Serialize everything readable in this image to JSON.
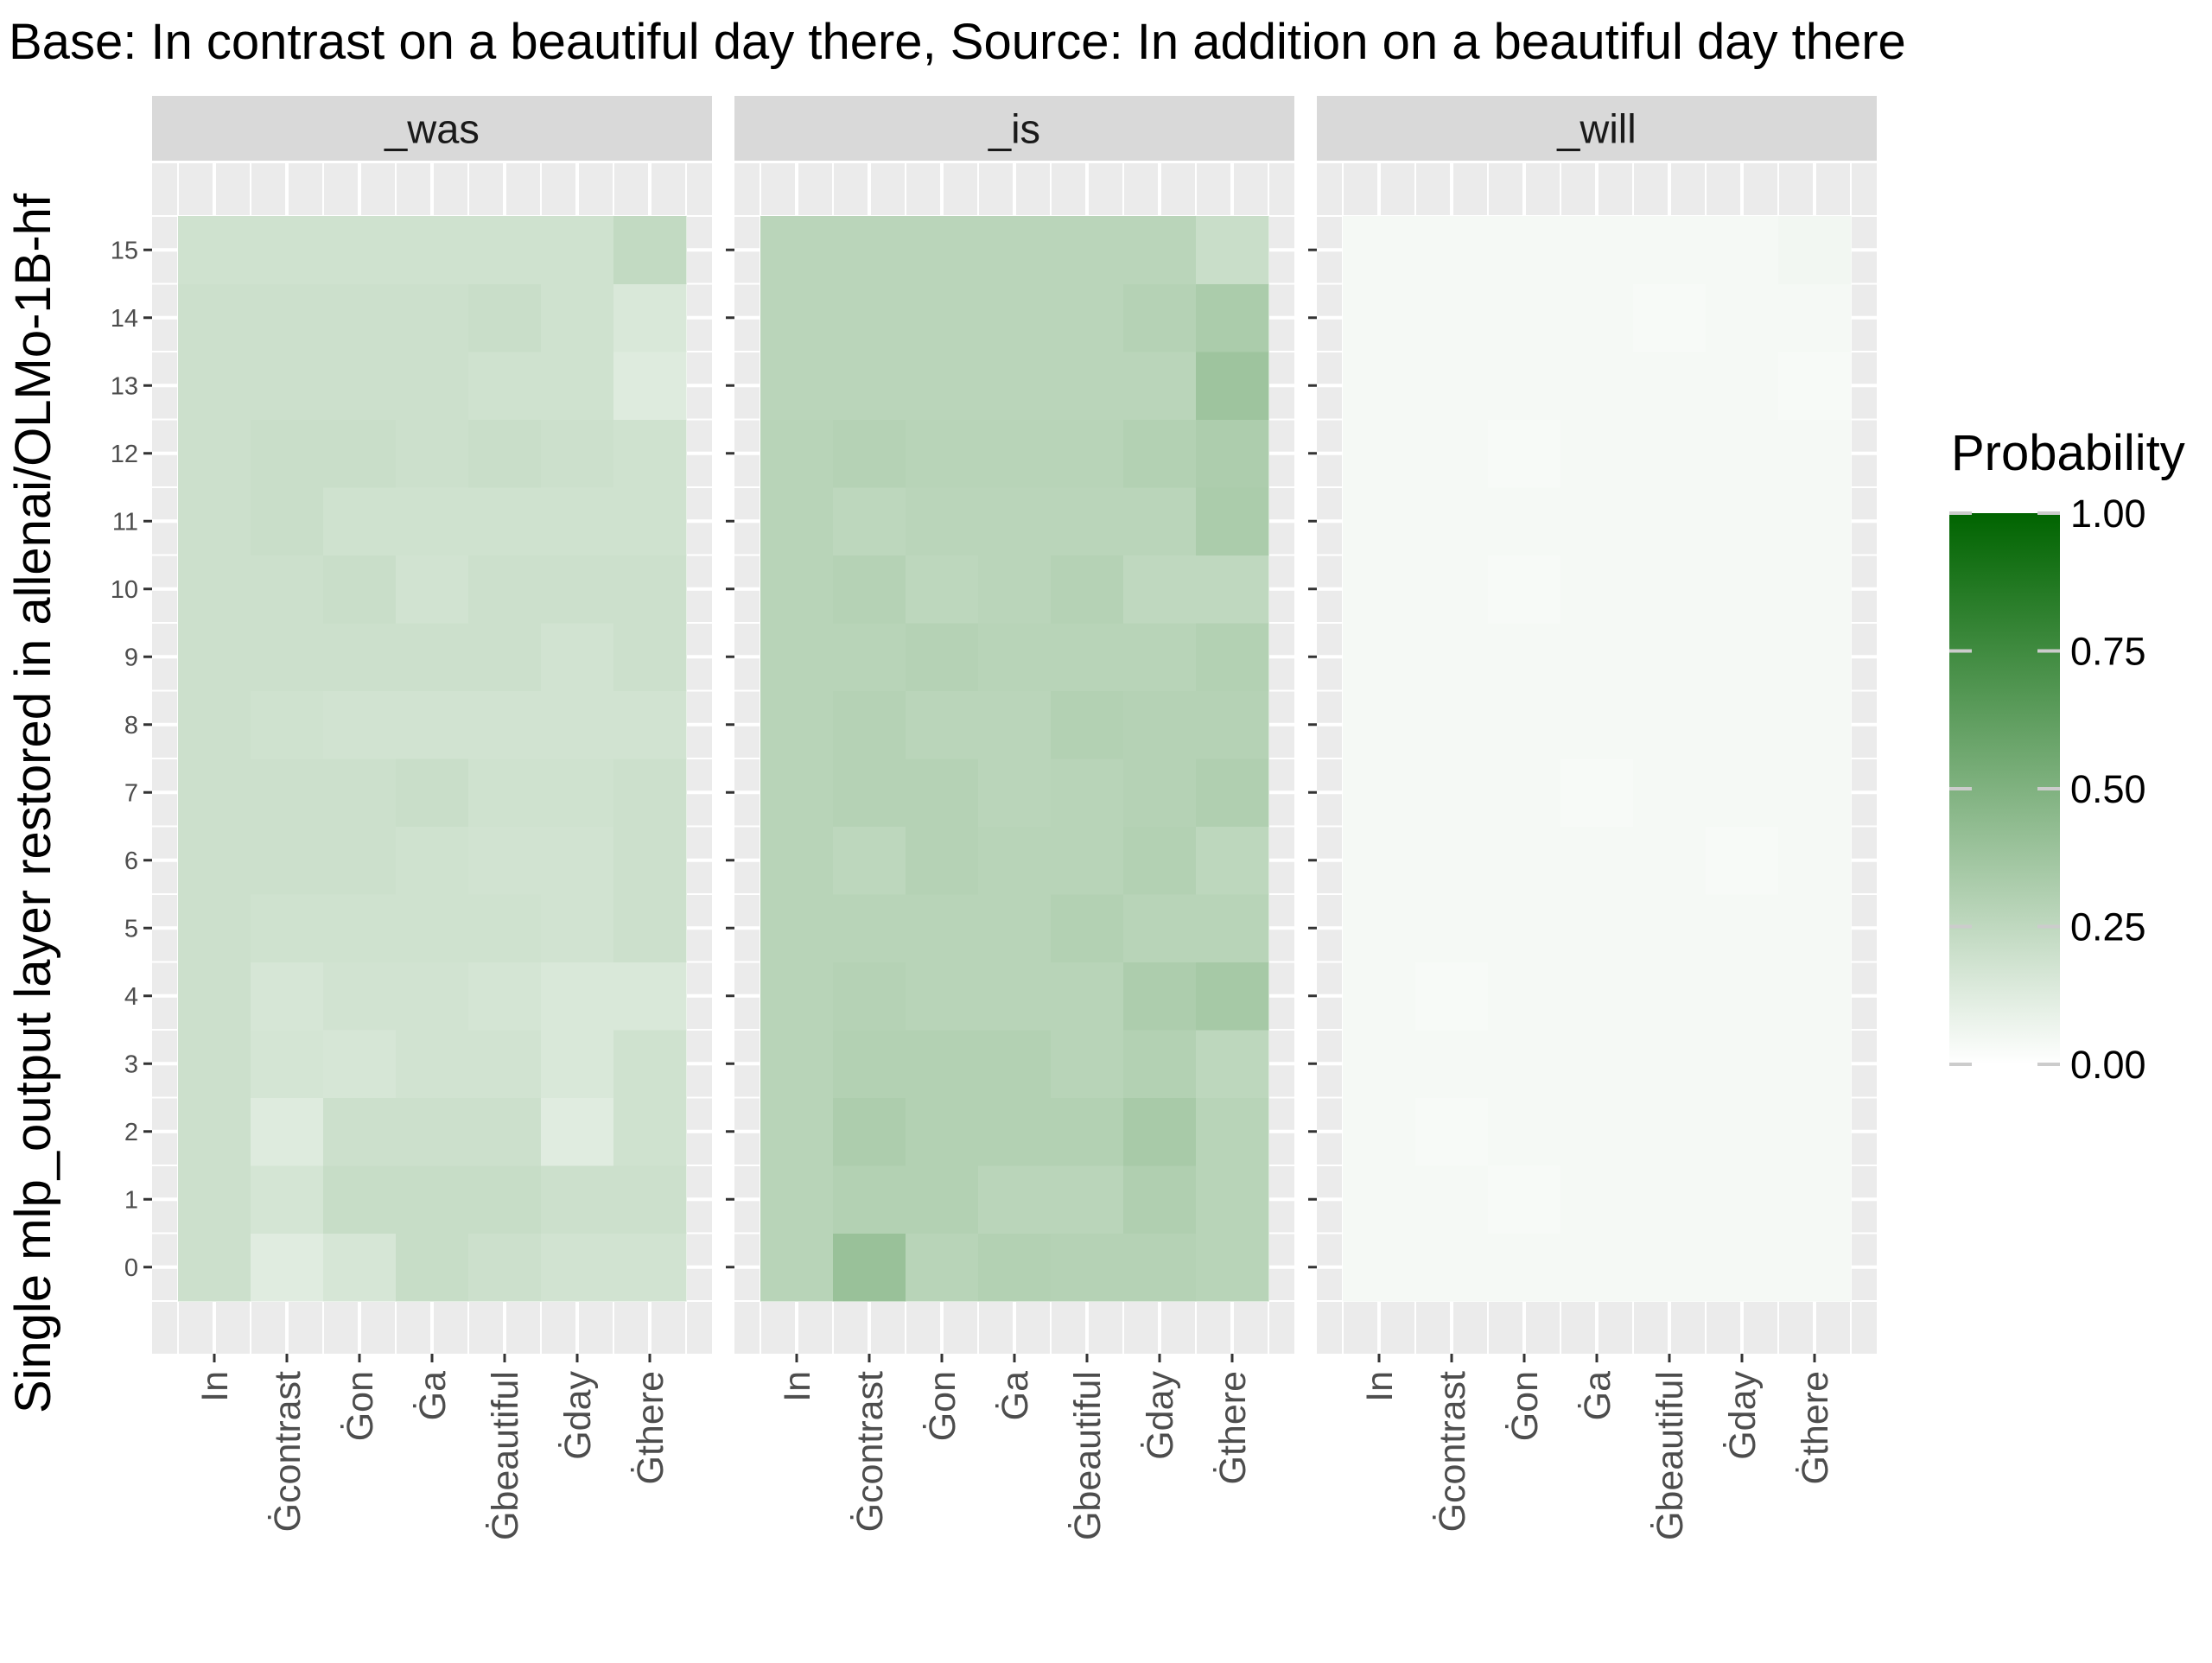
{
  "chart_data": {
    "type": "heatmap",
    "title": "Base: In contrast on a beautiful day there, Source: In addition on a beautiful day there",
    "ylabel": "Single mlp_output layer restored in allenai/OLMo-1B-hf",
    "xlabel": "",
    "x_categories": [
      "In",
      "Ġcontrast",
      "Ġon",
      "Ġa",
      "Ġbeautiful",
      "Ġday",
      "Ġthere"
    ],
    "y_categories": [
      "0",
      "1",
      "2",
      "3",
      "4",
      "5",
      "6",
      "7",
      "8",
      "9",
      "10",
      "11",
      "12",
      "13",
      "14",
      "15"
    ],
    "legend": {
      "title": "Probability",
      "ticks": [
        "1.00",
        "0.75",
        "0.50",
        "0.25",
        "0.00"
      ],
      "range": [
        0,
        1
      ],
      "low_color": "#ffffff",
      "high_color": "#006400",
      "placement": "right"
    },
    "panel_background": "#ebebeb",
    "grid": true,
    "panels": [
      {
        "label": "_was",
        "values_by_layer": [
          [
            0.2,
            0.12,
            0.16,
            0.22,
            0.2,
            0.18,
            0.18
          ],
          [
            0.2,
            0.17,
            0.22,
            0.22,
            0.22,
            0.2,
            0.2
          ],
          [
            0.2,
            0.13,
            0.2,
            0.2,
            0.2,
            0.12,
            0.19
          ],
          [
            0.2,
            0.17,
            0.16,
            0.18,
            0.18,
            0.15,
            0.19
          ],
          [
            0.2,
            0.16,
            0.18,
            0.18,
            0.17,
            0.15,
            0.15
          ],
          [
            0.2,
            0.19,
            0.19,
            0.19,
            0.19,
            0.18,
            0.2
          ],
          [
            0.2,
            0.2,
            0.2,
            0.19,
            0.18,
            0.18,
            0.2
          ],
          [
            0.2,
            0.2,
            0.2,
            0.21,
            0.19,
            0.19,
            0.2
          ],
          [
            0.2,
            0.19,
            0.18,
            0.18,
            0.18,
            0.18,
            0.18
          ],
          [
            0.2,
            0.2,
            0.2,
            0.2,
            0.2,
            0.18,
            0.2
          ],
          [
            0.2,
            0.2,
            0.21,
            0.18,
            0.2,
            0.2,
            0.2
          ],
          [
            0.2,
            0.21,
            0.19,
            0.19,
            0.19,
            0.19,
            0.19
          ],
          [
            0.2,
            0.21,
            0.21,
            0.2,
            0.21,
            0.2,
            0.19
          ],
          [
            0.2,
            0.2,
            0.2,
            0.2,
            0.19,
            0.19,
            0.13
          ],
          [
            0.2,
            0.2,
            0.2,
            0.2,
            0.21,
            0.19,
            0.15
          ],
          [
            0.19,
            0.19,
            0.19,
            0.19,
            0.19,
            0.19,
            0.24
          ]
        ]
      },
      {
        "label": "_is",
        "values_by_layer": [
          [
            0.28,
            0.4,
            0.28,
            0.3,
            0.29,
            0.29,
            0.28
          ],
          [
            0.28,
            0.3,
            0.3,
            0.27,
            0.27,
            0.31,
            0.28
          ],
          [
            0.28,
            0.32,
            0.3,
            0.3,
            0.3,
            0.34,
            0.28
          ],
          [
            0.28,
            0.3,
            0.3,
            0.3,
            0.28,
            0.3,
            0.26
          ],
          [
            0.28,
            0.29,
            0.28,
            0.28,
            0.28,
            0.32,
            0.35
          ],
          [
            0.28,
            0.28,
            0.28,
            0.28,
            0.3,
            0.28,
            0.28
          ],
          [
            0.28,
            0.26,
            0.29,
            0.28,
            0.28,
            0.3,
            0.26
          ],
          [
            0.28,
            0.29,
            0.29,
            0.27,
            0.28,
            0.29,
            0.31
          ],
          [
            0.28,
            0.29,
            0.27,
            0.27,
            0.3,
            0.29,
            0.29
          ],
          [
            0.28,
            0.28,
            0.29,
            0.28,
            0.28,
            0.28,
            0.3
          ],
          [
            0.28,
            0.29,
            0.26,
            0.27,
            0.29,
            0.25,
            0.25
          ],
          [
            0.28,
            0.26,
            0.27,
            0.27,
            0.27,
            0.27,
            0.33
          ],
          [
            0.28,
            0.29,
            0.28,
            0.28,
            0.28,
            0.3,
            0.32
          ],
          [
            0.27,
            0.27,
            0.27,
            0.27,
            0.27,
            0.27,
            0.38
          ],
          [
            0.27,
            0.27,
            0.27,
            0.27,
            0.27,
            0.29,
            0.33
          ],
          [
            0.27,
            0.27,
            0.27,
            0.27,
            0.27,
            0.27,
            0.21
          ]
        ]
      },
      {
        "label": "_will",
        "values_by_layer": [
          [
            0.04,
            0.04,
            0.04,
            0.04,
            0.04,
            0.04,
            0.04
          ],
          [
            0.04,
            0.04,
            0.03,
            0.04,
            0.04,
            0.04,
            0.04
          ],
          [
            0.04,
            0.03,
            0.04,
            0.04,
            0.04,
            0.04,
            0.04
          ],
          [
            0.04,
            0.04,
            0.04,
            0.04,
            0.04,
            0.04,
            0.04
          ],
          [
            0.04,
            0.03,
            0.04,
            0.04,
            0.04,
            0.04,
            0.04
          ],
          [
            0.04,
            0.04,
            0.04,
            0.04,
            0.04,
            0.04,
            0.04
          ],
          [
            0.04,
            0.04,
            0.04,
            0.04,
            0.04,
            0.03,
            0.04
          ],
          [
            0.04,
            0.04,
            0.04,
            0.03,
            0.04,
            0.04,
            0.04
          ],
          [
            0.04,
            0.04,
            0.04,
            0.04,
            0.04,
            0.04,
            0.04
          ],
          [
            0.04,
            0.04,
            0.04,
            0.04,
            0.04,
            0.04,
            0.04
          ],
          [
            0.04,
            0.04,
            0.03,
            0.04,
            0.04,
            0.04,
            0.04
          ],
          [
            0.04,
            0.04,
            0.04,
            0.04,
            0.04,
            0.04,
            0.04
          ],
          [
            0.04,
            0.04,
            0.03,
            0.04,
            0.04,
            0.04,
            0.04
          ],
          [
            0.04,
            0.04,
            0.04,
            0.04,
            0.04,
            0.04,
            0.03
          ],
          [
            0.04,
            0.04,
            0.04,
            0.04,
            0.03,
            0.04,
            0.04
          ],
          [
            0.04,
            0.04,
            0.04,
            0.04,
            0.04,
            0.04,
            0.05
          ]
        ]
      }
    ]
  }
}
